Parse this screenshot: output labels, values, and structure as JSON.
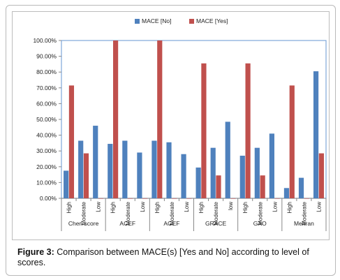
{
  "chart_data": {
    "type": "bar",
    "title": "",
    "xlabel": "",
    "ylabel": "",
    "ylim": [
      0,
      100
    ],
    "y_tick_labels": [
      "0.00%",
      "10.00%",
      "20.00%",
      "30.00%",
      "40.00%",
      "50.00%",
      "60.00%",
      "70.00%",
      "80.00%",
      "90.00%",
      "100.00%"
    ],
    "legend_position": "top-center",
    "grid": false,
    "groups": [
      "Chen score",
      "ACEF",
      "AGEF",
      "GRACE",
      "GAO",
      "Mehran"
    ],
    "categories": [
      "High",
      "Moderate",
      "Low",
      "High",
      "Moderate",
      "Low",
      "High",
      "Moderate",
      "Low",
      "High",
      "Moderate",
      "low",
      "High",
      "Moderate",
      "Low",
      "High",
      "Moderate",
      "Low"
    ],
    "series": [
      {
        "name": "MACE [No]",
        "color": "#4f81bd",
        "values": [
          17.5,
          36.5,
          46,
          34.5,
          36.5,
          29,
          36.5,
          35.5,
          28,
          19.5,
          32,
          48.5,
          27,
          32,
          41,
          6.5,
          13,
          80.5
        ]
      },
      {
        "name": "MACE [Yes]",
        "color": "#c0504d",
        "values": [
          71.5,
          28.5,
          0,
          100,
          0,
          0,
          100,
          0,
          0,
          85.5,
          14.5,
          0,
          85.5,
          14.5,
          0,
          71.5,
          0,
          28.5
        ]
      }
    ]
  },
  "caption": {
    "label": "Figure 3:",
    "text": " Comparison between MACE(s) [Yes and No] according to level of scores."
  }
}
